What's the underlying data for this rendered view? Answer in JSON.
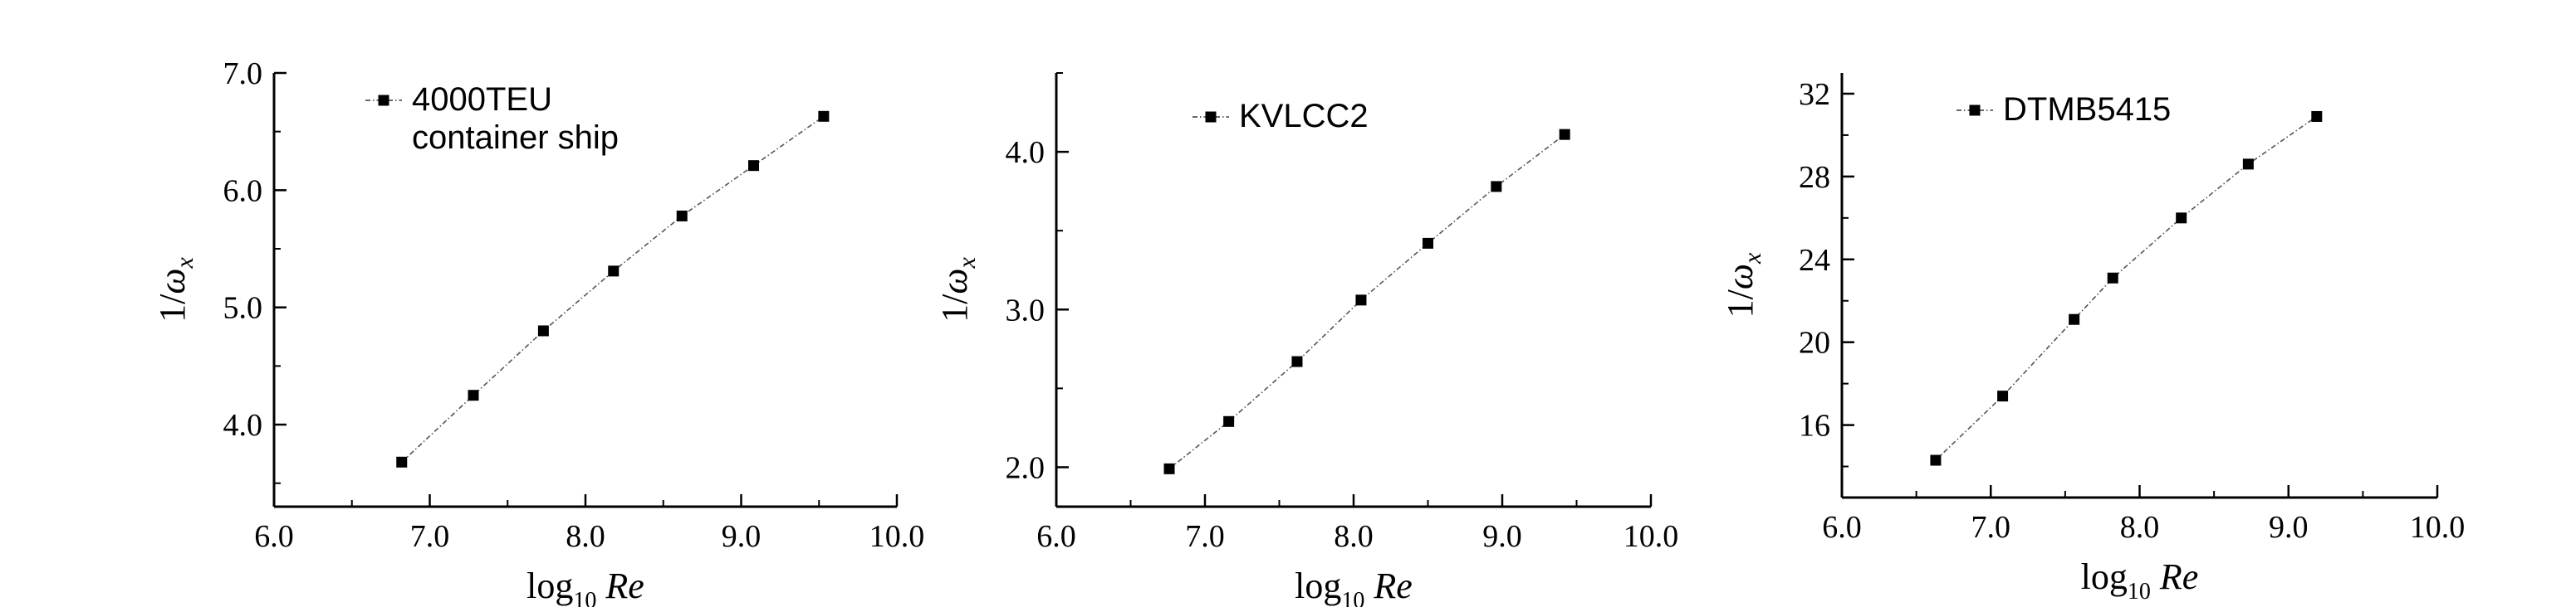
{
  "chart_data": [
    {
      "type": "line",
      "x": [
        6.82,
        7.28,
        7.73,
        8.18,
        8.62,
        9.08,
        9.53
      ],
      "series": [
        {
          "name": "4000TEU container ship",
          "values": [
            3.68,
            4.25,
            4.8,
            5.31,
            5.78,
            6.21,
            6.63
          ]
        }
      ],
      "xlim": [
        6.0,
        10.0
      ],
      "ylim": [
        3.3,
        7.0
      ],
      "xticks": [
        {
          "v": 6.0,
          "label": "6.0"
        },
        {
          "v": 7.0,
          "label": "7.0"
        },
        {
          "v": 8.0,
          "label": "8.0"
        },
        {
          "v": 9.0,
          "label": "9.0"
        },
        {
          "v": 10.0,
          "label": "10.0"
        }
      ],
      "yticks": [
        {
          "v": 4.0,
          "label": "4.0"
        },
        {
          "v": 5.0,
          "label": "5.0"
        },
        {
          "v": 6.0,
          "label": "6.0"
        },
        {
          "v": 7.0,
          "label": "7.0"
        }
      ],
      "xlabel": {
        "log": "log",
        "sub": "10",
        "var": "Re"
      },
      "ylabel": {
        "prefix": "1/",
        "sym": "ω",
        "sub": "x"
      },
      "legend": {
        "position": "top-left",
        "lines": [
          "4000TEU",
          "container ship"
        ]
      },
      "grid": false
    },
    {
      "type": "line",
      "x": [
        6.76,
        7.16,
        7.62,
        8.05,
        8.5,
        8.96,
        9.42
      ],
      "series": [
        {
          "name": "KVLCC2",
          "values": [
            1.99,
            2.29,
            2.67,
            3.06,
            3.42,
            3.78,
            4.11
          ]
        }
      ],
      "xlim": [
        6.0,
        10.0
      ],
      "ylim": [
        1.75,
        4.5
      ],
      "xticks": [
        {
          "v": 6.0,
          "label": "6.0"
        },
        {
          "v": 7.0,
          "label": "7.0"
        },
        {
          "v": 8.0,
          "label": "8.0"
        },
        {
          "v": 9.0,
          "label": "9.0"
        },
        {
          "v": 10.0,
          "label": "10.0"
        }
      ],
      "yticks": [
        {
          "v": 2.0,
          "label": "2.0"
        },
        {
          "v": 3.0,
          "label": "3.0"
        },
        {
          "v": 4.0,
          "label": "4.0"
        }
      ],
      "xlabel": {
        "log": "log",
        "sub": "10",
        "var": "Re"
      },
      "ylabel": {
        "prefix": "1/",
        "sym": "ω",
        "sub": "x"
      },
      "legend": {
        "position": "top-left",
        "lines": [
          "KVLCC2"
        ]
      },
      "grid": false
    },
    {
      "type": "line",
      "x": [
        6.63,
        7.08,
        7.56,
        7.82,
        8.28,
        8.73,
        9.19
      ],
      "series": [
        {
          "name": "DTMB5415",
          "values": [
            14.3,
            17.4,
            21.1,
            23.1,
            26.0,
            28.6,
            30.9
          ]
        }
      ],
      "xlim": [
        6.0,
        10.0
      ],
      "ylim": [
        12.5,
        33.0
      ],
      "xticks": [
        {
          "v": 6.0,
          "label": "6.0"
        },
        {
          "v": 7.0,
          "label": "7.0"
        },
        {
          "v": 8.0,
          "label": "8.0"
        },
        {
          "v": 9.0,
          "label": "9.0"
        },
        {
          "v": 10.0,
          "label": "10.0"
        }
      ],
      "yticks": [
        {
          "v": 16,
          "label": "16"
        },
        {
          "v": 20,
          "label": "20"
        },
        {
          "v": 24,
          "label": "24"
        },
        {
          "v": 28,
          "label": "28"
        },
        {
          "v": 32,
          "label": "32"
        }
      ],
      "xlabel": {
        "log": "log",
        "sub": "10",
        "var": "Re"
      },
      "ylabel": {
        "prefix": "1/",
        "sym": "ω",
        "sub": "x"
      },
      "legend": {
        "position": "top-left",
        "lines": [
          "DTMB5415"
        ]
      },
      "grid": false
    }
  ]
}
